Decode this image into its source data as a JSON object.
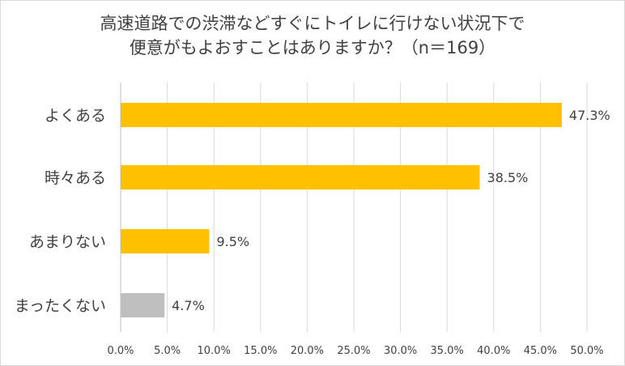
{
  "chart_data": {
    "type": "bar",
    "orientation": "horizontal",
    "title_lines": [
      "高速道路での渋滞などすぐにトイレに行けない状況下で",
      "便意がもよおすことはありますか？（n＝169）"
    ],
    "categories": [
      "よくある",
      "時々ある",
      "あまりない",
      "まったくない"
    ],
    "values": [
      47.3,
      38.5,
      9.5,
      4.7
    ],
    "value_labels": [
      "47.3%",
      "38.5%",
      "9.5%",
      "4.7%"
    ],
    "bar_colors": [
      "#FFC000",
      "#FFC000",
      "#FFC000",
      "#BFBFBF"
    ],
    "xlim": [
      0,
      50
    ],
    "xticks": [
      "0.0%",
      "5.0%",
      "10.0%",
      "15.0%",
      "20.0%",
      "25.0%",
      "30.0%",
      "35.0%",
      "40.0%",
      "45.0%",
      "50.0%"
    ],
    "grid": true,
    "legend": "none",
    "xlabel": "",
    "ylabel": ""
  }
}
